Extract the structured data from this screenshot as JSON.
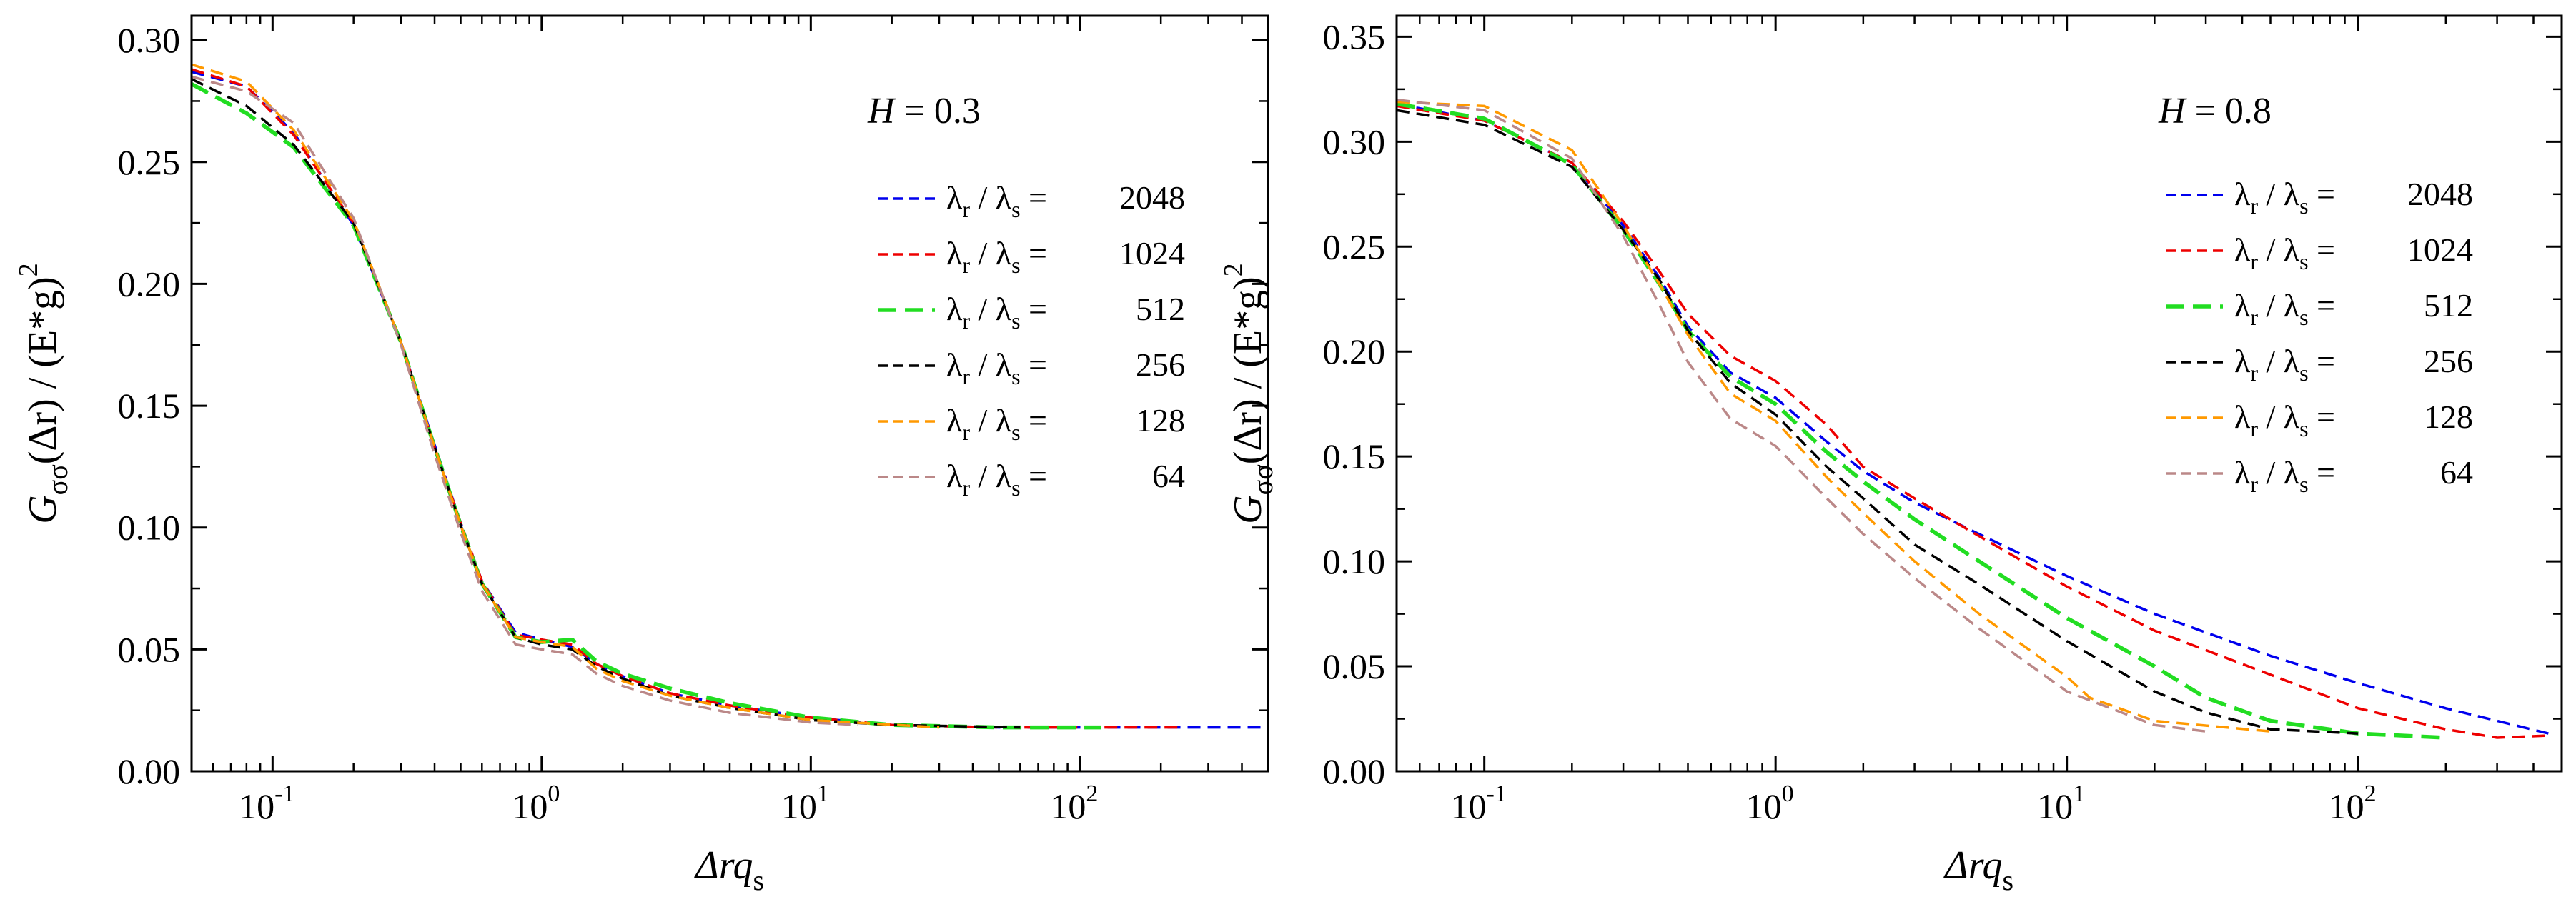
{
  "chart_data": [
    {
      "type": "line",
      "annotation": {
        "var": "H",
        "eq": " = ",
        "val": "0.3"
      },
      "xlabel": {
        "main": "Δrq",
        "sub": "s"
      },
      "ylabel": {
        "main": "G",
        "sub": "σσ",
        "rest": "(Δr) / (E*g)",
        "sup": "2"
      },
      "xscale": "log",
      "xlim": [
        0.05,
        500
      ],
      "ylim": [
        0,
        0.31
      ],
      "yticks": [
        "0.00",
        "0.05",
        "0.10",
        "0.15",
        "0.20",
        "0.25",
        "0.30"
      ],
      "xticks": [
        {
          "base": "10",
          "exp": "-1"
        },
        {
          "base": "10",
          "exp": "0"
        },
        {
          "base": "10",
          "exp": "1"
        },
        {
          "base": "10",
          "exp": "2"
        }
      ],
      "legend_position": "upper-right",
      "series": [
        {
          "name": "2048",
          "color": "#0000ee",
          "points": [
            [
              0.05,
              0.287
            ],
            [
              0.08,
              0.281
            ],
            [
              0.12,
              0.262
            ],
            [
              0.2,
              0.224
            ],
            [
              0.3,
              0.176
            ],
            [
              0.4,
              0.134
            ],
            [
              0.5,
              0.102
            ],
            [
              0.6,
              0.078
            ],
            [
              0.8,
              0.057
            ],
            [
              1.0,
              0.054
            ],
            [
              1.3,
              0.051
            ],
            [
              1.6,
              0.044
            ],
            [
              2.0,
              0.039
            ],
            [
              3.0,
              0.032
            ],
            [
              5.0,
              0.027
            ],
            [
              10,
              0.022
            ],
            [
              20,
              0.019
            ],
            [
              50,
              0.018
            ],
            [
              100,
              0.018
            ],
            [
              200,
              0.018
            ],
            [
              480,
              0.018
            ]
          ]
        },
        {
          "name": "1024",
          "color": "#ee0000",
          "points": [
            [
              0.05,
              0.288
            ],
            [
              0.08,
              0.281
            ],
            [
              0.12,
              0.261
            ],
            [
              0.2,
              0.225
            ],
            [
              0.3,
              0.176
            ],
            [
              0.4,
              0.133
            ],
            [
              0.5,
              0.102
            ],
            [
              0.6,
              0.078
            ],
            [
              0.8,
              0.056
            ],
            [
              1.0,
              0.054
            ],
            [
              1.3,
              0.052
            ],
            [
              1.6,
              0.044
            ],
            [
              2.0,
              0.039
            ],
            [
              3.0,
              0.032
            ],
            [
              5.0,
              0.027
            ],
            [
              10,
              0.022
            ],
            [
              20,
              0.019
            ],
            [
              50,
              0.018
            ],
            [
              100,
              0.018
            ],
            [
              240,
              0.018
            ]
          ]
        },
        {
          "name": "512",
          "color": "#22dd22",
          "points": [
            [
              0.05,
              0.282
            ],
            [
              0.08,
              0.27
            ],
            [
              0.12,
              0.256
            ],
            [
              0.2,
              0.224
            ],
            [
              0.3,
              0.176
            ],
            [
              0.4,
              0.133
            ],
            [
              0.5,
              0.101
            ],
            [
              0.6,
              0.077
            ],
            [
              0.8,
              0.055
            ],
            [
              1.0,
              0.053
            ],
            [
              1.3,
              0.054
            ],
            [
              1.6,
              0.045
            ],
            [
              2.0,
              0.04
            ],
            [
              3.0,
              0.034
            ],
            [
              5.0,
              0.028
            ],
            [
              10,
              0.022
            ],
            [
              20,
              0.019
            ],
            [
              50,
              0.018
            ],
            [
              120,
              0.018
            ]
          ]
        },
        {
          "name": "256",
          "color": "#000000",
          "points": [
            [
              0.05,
              0.284
            ],
            [
              0.08,
              0.273
            ],
            [
              0.12,
              0.257
            ],
            [
              0.2,
              0.225
            ],
            [
              0.3,
              0.176
            ],
            [
              0.4,
              0.133
            ],
            [
              0.5,
              0.101
            ],
            [
              0.6,
              0.077
            ],
            [
              0.8,
              0.055
            ],
            [
              1.0,
              0.052
            ],
            [
              1.3,
              0.05
            ],
            [
              1.6,
              0.043
            ],
            [
              2.0,
              0.038
            ],
            [
              3.0,
              0.031
            ],
            [
              5.0,
              0.026
            ],
            [
              10,
              0.021
            ],
            [
              20,
              0.019
            ],
            [
              60,
              0.018
            ]
          ]
        },
        {
          "name": "128",
          "color": "#ff9900",
          "points": [
            [
              0.05,
              0.29
            ],
            [
              0.08,
              0.283
            ],
            [
              0.12,
              0.263
            ],
            [
              0.2,
              0.226
            ],
            [
              0.3,
              0.176
            ],
            [
              0.4,
              0.133
            ],
            [
              0.5,
              0.101
            ],
            [
              0.6,
              0.077
            ],
            [
              0.8,
              0.055
            ],
            [
              1.0,
              0.053
            ],
            [
              1.3,
              0.051
            ],
            [
              1.6,
              0.042
            ],
            [
              2.0,
              0.037
            ],
            [
              3.0,
              0.031
            ],
            [
              5.0,
              0.026
            ],
            [
              10,
              0.021
            ],
            [
              30,
              0.018
            ]
          ]
        },
        {
          "name": "64",
          "color": "#bb8888",
          "points": [
            [
              0.05,
              0.285
            ],
            [
              0.08,
              0.279
            ],
            [
              0.12,
              0.266
            ],
            [
              0.2,
              0.227
            ],
            [
              0.3,
              0.175
            ],
            [
              0.4,
              0.13
            ],
            [
              0.5,
              0.098
            ],
            [
              0.6,
              0.074
            ],
            [
              0.8,
              0.052
            ],
            [
              1.0,
              0.05
            ],
            [
              1.3,
              0.048
            ],
            [
              1.6,
              0.04
            ],
            [
              2.0,
              0.035
            ],
            [
              3.0,
              0.029
            ],
            [
              5.0,
              0.024
            ],
            [
              10,
              0.02
            ],
            [
              15,
              0.019
            ]
          ]
        }
      ]
    },
    {
      "type": "line",
      "annotation": {
        "var": "H",
        "eq": " = ",
        "val": "0.8"
      },
      "xlabel": {
        "main": "Δrq",
        "sub": "s"
      },
      "ylabel": {
        "main": "G",
        "sub": "σσ",
        "rest": "(Δr) / (E*g)",
        "sup": "2"
      },
      "xscale": "log",
      "xlim": [
        0.05,
        500
      ],
      "ylim": [
        0,
        0.36
      ],
      "yticks": [
        "0.00",
        "0.05",
        "0.10",
        "0.15",
        "0.20",
        "0.25",
        "0.30",
        "0.35"
      ],
      "xticks": [
        {
          "base": "10",
          "exp": "-1"
        },
        {
          "base": "10",
          "exp": "0"
        },
        {
          "base": "10",
          "exp": "1"
        },
        {
          "base": "10",
          "exp": "2"
        }
      ],
      "legend_position": "upper-right",
      "series": [
        {
          "name": "2048",
          "color": "#0000ee",
          "points": [
            [
              0.05,
              0.318
            ],
            [
              0.1,
              0.31
            ],
            [
              0.2,
              0.29
            ],
            [
              0.3,
              0.26
            ],
            [
              0.4,
              0.235
            ],
            [
              0.5,
              0.212
            ],
            [
              0.7,
              0.19
            ],
            [
              1.0,
              0.178
            ],
            [
              1.5,
              0.157
            ],
            [
              2.0,
              0.143
            ],
            [
              3.0,
              0.128
            ],
            [
              5.0,
              0.113
            ],
            [
              10,
              0.093
            ],
            [
              20,
              0.075
            ],
            [
              50,
              0.055
            ],
            [
              100,
              0.042
            ],
            [
              200,
              0.03
            ],
            [
              450,
              0.018
            ]
          ]
        },
        {
          "name": "1024",
          "color": "#ee0000",
          "points": [
            [
              0.05,
              0.317
            ],
            [
              0.1,
              0.31
            ],
            [
              0.2,
              0.29
            ],
            [
              0.3,
              0.262
            ],
            [
              0.4,
              0.238
            ],
            [
              0.5,
              0.218
            ],
            [
              0.7,
              0.198
            ],
            [
              1.0,
              0.186
            ],
            [
              1.5,
              0.165
            ],
            [
              2.0,
              0.145
            ],
            [
              3.0,
              0.13
            ],
            [
              5.0,
              0.112
            ],
            [
              10,
              0.088
            ],
            [
              20,
              0.067
            ],
            [
              50,
              0.046
            ],
            [
              100,
              0.03
            ],
            [
              200,
              0.02
            ],
            [
              300,
              0.016
            ],
            [
              450,
              0.017
            ]
          ]
        },
        {
          "name": "512",
          "color": "#22dd22",
          "points": [
            [
              0.05,
              0.318
            ],
            [
              0.1,
              0.311
            ],
            [
              0.2,
              0.289
            ],
            [
              0.3,
              0.258
            ],
            [
              0.4,
              0.232
            ],
            [
              0.5,
              0.21
            ],
            [
              0.7,
              0.188
            ],
            [
              1.0,
              0.175
            ],
            [
              1.5,
              0.152
            ],
            [
              2.0,
              0.138
            ],
            [
              3.0,
              0.12
            ],
            [
              5.0,
              0.1
            ],
            [
              10,
              0.073
            ],
            [
              20,
              0.05
            ],
            [
              30,
              0.035
            ],
            [
              50,
              0.024
            ],
            [
              100,
              0.018
            ],
            [
              200,
              0.016
            ]
          ]
        },
        {
          "name": "256",
          "color": "#000000",
          "points": [
            [
              0.05,
              0.315
            ],
            [
              0.1,
              0.308
            ],
            [
              0.2,
              0.288
            ],
            [
              0.3,
              0.258
            ],
            [
              0.4,
              0.234
            ],
            [
              0.5,
              0.21
            ],
            [
              0.7,
              0.185
            ],
            [
              1.0,
              0.17
            ],
            [
              1.5,
              0.145
            ],
            [
              2.0,
              0.13
            ],
            [
              3.0,
              0.108
            ],
            [
              5.0,
              0.089
            ],
            [
              10,
              0.062
            ],
            [
              20,
              0.038
            ],
            [
              30,
              0.028
            ],
            [
              50,
              0.02
            ],
            [
              100,
              0.018
            ]
          ]
        },
        {
          "name": "128",
          "color": "#ff9900",
          "points": [
            [
              0.05,
              0.319
            ],
            [
              0.1,
              0.317
            ],
            [
              0.2,
              0.296
            ],
            [
              0.3,
              0.26
            ],
            [
              0.4,
              0.232
            ],
            [
              0.5,
              0.208
            ],
            [
              0.7,
              0.18
            ],
            [
              1.0,
              0.167
            ],
            [
              1.5,
              0.14
            ],
            [
              2.0,
              0.123
            ],
            [
              3.0,
              0.1
            ],
            [
              5.0,
              0.075
            ],
            [
              10,
              0.045
            ],
            [
              12,
              0.035
            ],
            [
              20,
              0.024
            ],
            [
              50,
              0.019
            ]
          ]
        },
        {
          "name": "64",
          "color": "#bb8888",
          "points": [
            [
              0.05,
              0.32
            ],
            [
              0.1,
              0.315
            ],
            [
              0.2,
              0.292
            ],
            [
              0.3,
              0.255
            ],
            [
              0.4,
              0.222
            ],
            [
              0.5,
              0.195
            ],
            [
              0.7,
              0.168
            ],
            [
              1.0,
              0.155
            ],
            [
              1.5,
              0.13
            ],
            [
              2.0,
              0.113
            ],
            [
              3.0,
              0.092
            ],
            [
              5.0,
              0.068
            ],
            [
              10,
              0.038
            ],
            [
              20,
              0.022
            ],
            [
              30,
              0.019
            ]
          ]
        }
      ]
    }
  ],
  "legend_template": {
    "ratio_left": "λ",
    "sub_r": "r",
    "slash": " / λ",
    "sub_s": "s",
    "eq": " = "
  }
}
